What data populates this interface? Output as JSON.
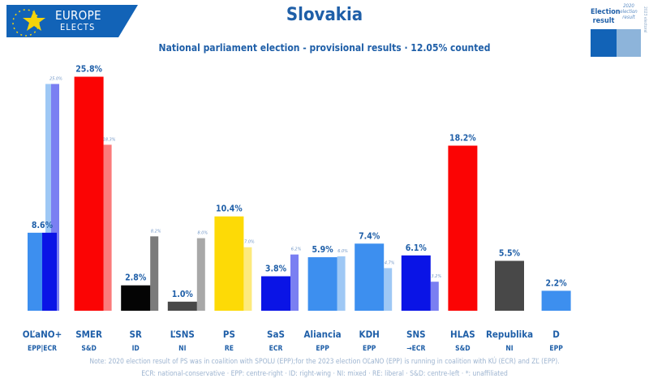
{
  "header": {
    "logo_line1": "EUROPE",
    "logo_line2": "ELECTS",
    "title": "Slovakia",
    "subtitle": "National parliament election - provisional results · 12.05% counted"
  },
  "legend": {
    "current_label": "Election result",
    "previous_label": "2020 election result",
    "side_text": "2023 electoral",
    "current_color": "#1263b7",
    "previous_color": "#8db4da"
  },
  "note": {
    "line1": "Note: 2020 election result of PS was in coalition with SPOLU (EPP);for the 2023 election OĽaNO (EPP) is running in coalition with KÚ (ECR) and ZĽ (EPP).",
    "line2": "ECR: national-conservative · EPP: centre-right · ID: right-wing · NI: mixed · RE: liberal · S&D: centre-left · *: unaffiliated"
  },
  "chart_data": {
    "type": "bar",
    "title": "Slovakia",
    "subtitle": "National parliament election - provisional results · 12.05% counted",
    "ylim": [
      0,
      26.5
    ],
    "grid": false,
    "legend_position": "top-right",
    "series": [
      {
        "name": "Election result",
        "values": [
          8.6,
          25.8,
          2.8,
          1.0,
          10.4,
          3.8,
          5.9,
          7.4,
          6.1,
          18.2,
          5.5,
          2.2
        ]
      },
      {
        "name": "2020 election result",
        "values": [
          25.0,
          18.3,
          8.2,
          8.0,
          7.0,
          6.2,
          6.0,
          4.7,
          3.2,
          null,
          null,
          null
        ]
      }
    ],
    "bars": [
      {
        "party": "OĽaNO+",
        "group": "EPP|ECR",
        "value": 8.6,
        "value_label": "8.6%",
        "color": "#0a14e6",
        "split_color": "#3d8fef",
        "prev": 25.0,
        "prev_label": "25.0%",
        "prev_color": "#7a7ff2",
        "prev_split_color": "#9ec8f5"
      },
      {
        "party": "SMER",
        "group": "S&D",
        "value": 25.8,
        "value_label": "25.8%",
        "color": "#fb0404",
        "prev": 18.3,
        "prev_label": "18.3%",
        "prev_color": "#fb7b7b"
      },
      {
        "party": "SR",
        "group": "ID",
        "value": 2.8,
        "value_label": "2.8%",
        "color": "#040404",
        "prev": 8.2,
        "prev_label": "8.2%",
        "prev_color": "#7b7b7b"
      },
      {
        "party": "ĽSNS",
        "group": "NI",
        "value": 1.0,
        "value_label": "1.0%",
        "color": "#484848",
        "prev": 8.0,
        "prev_label": "8.0%",
        "prev_color": "#a8a8a8"
      },
      {
        "party": "PS",
        "group": "RE",
        "value": 10.4,
        "value_label": "10.4%",
        "color": "#fdda06",
        "prev": 7.0,
        "prev_label": "7.0%",
        "prev_color": "#fdea7c"
      },
      {
        "party": "SaS",
        "group": "ECR",
        "value": 3.8,
        "value_label": "3.8%",
        "color": "#0a14e6",
        "prev": 6.2,
        "prev_label": "6.2%",
        "prev_color": "#7a7ff2"
      },
      {
        "party": "Aliancia",
        "group": "EPP",
        "value": 5.9,
        "value_label": "5.9%",
        "color": "#3d8fef",
        "prev": 6.0,
        "prev_label": "6.0%",
        "prev_color": "#9ec8f5"
      },
      {
        "party": "KDH",
        "group": "EPP",
        "value": 7.4,
        "value_label": "7.4%",
        "color": "#3d8fef",
        "prev": 4.7,
        "prev_label": "4.7%",
        "prev_color": "#9ec8f5"
      },
      {
        "party": "SNS",
        "group": "→ECR",
        "value": 6.1,
        "value_label": "6.1%",
        "color": "#0a14e6",
        "prev": 3.2,
        "prev_label": "3.2%",
        "prev_color": "#7a7ff2"
      },
      {
        "party": "HLAS",
        "group": "S&D",
        "value": 18.2,
        "value_label": "18.2%",
        "color": "#fb0404"
      },
      {
        "party": "Republika",
        "group": "NI",
        "value": 5.5,
        "value_label": "5.5%",
        "color": "#484848"
      },
      {
        "party": "D",
        "group": "EPP",
        "value": 2.2,
        "value_label": "2.2%",
        "color": "#3d8fef"
      }
    ]
  }
}
